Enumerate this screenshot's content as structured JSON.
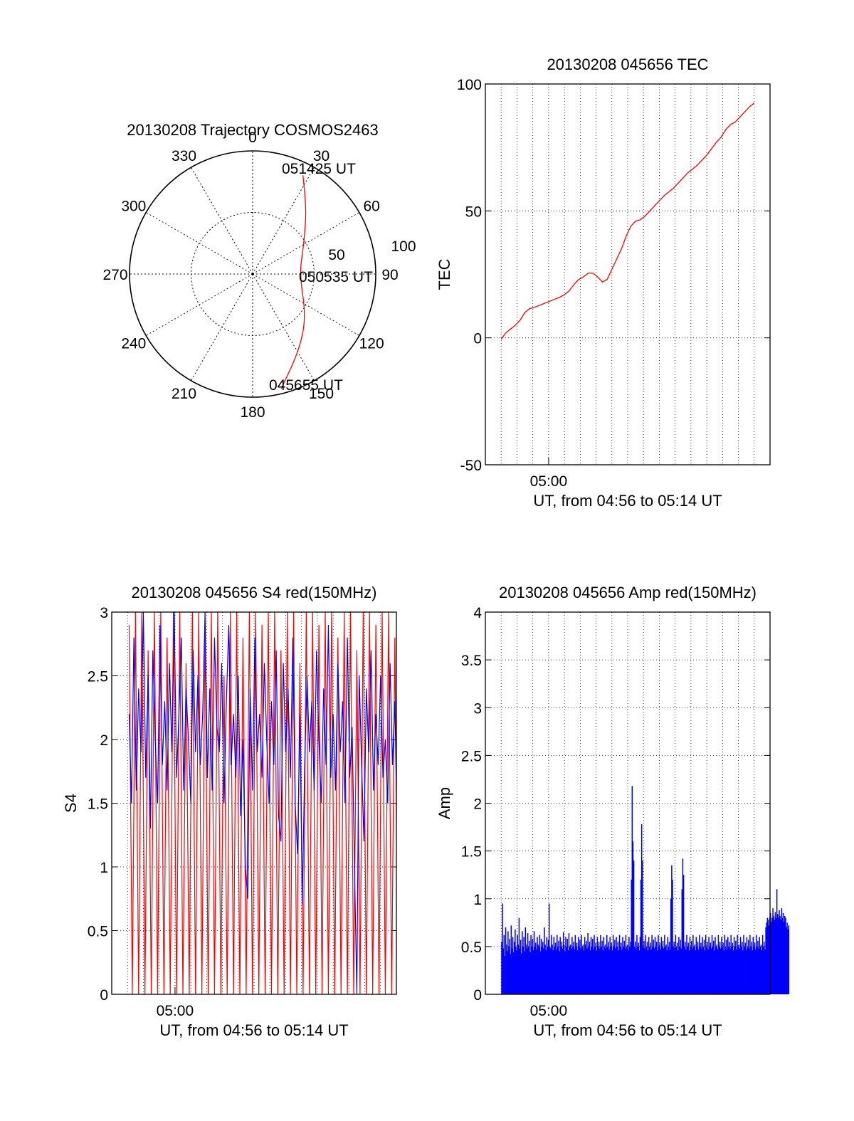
{
  "chart_data": [
    {
      "type": "polar",
      "title": "20130208 Trajectory COSMOS2463",
      "azimuth_labels": [
        "0",
        "30",
        "60",
        "90",
        "120",
        "150",
        "180",
        "210",
        "240",
        "270",
        "300",
        "330"
      ],
      "radial_labels": [
        "50",
        "100"
      ],
      "radial_range": [
        0,
        100
      ],
      "start_label": "045655 UT",
      "mid_label": "050535 UT",
      "end_label": "051425 UT",
      "trajectory": [
        {
          "az": 166.0,
          "r": 96.0
        },
        {
          "az": 148.0,
          "r": 72.0
        },
        {
          "az": 128.0,
          "r": 55.0
        },
        {
          "az": 90.0,
          "r": 38.0
        },
        {
          "az": 60.0,
          "r": 48.0
        },
        {
          "az": 40.0,
          "r": 68.0
        },
        {
          "az": 27.0,
          "r": 90.0
        }
      ],
      "series_color": "#ff0000"
    },
    {
      "type": "line",
      "title": "20130208 045656 TEC",
      "xlabel": "UT, from 04:56 to 05:14 UT",
      "ylabel": "TEC",
      "xlim": [
        0,
        18
      ],
      "ylim": [
        -50,
        100
      ],
      "yticks": [
        "-50",
        "0",
        "50",
        "100"
      ],
      "xtick_label": "05:00",
      "xtick_value": 4,
      "grid": true,
      "series_color": "#ff0000",
      "points": [
        [
          1.0,
          -0.5
        ],
        [
          1.3,
          2
        ],
        [
          1.6,
          3.5
        ],
        [
          1.9,
          5
        ],
        [
          2.2,
          7
        ],
        [
          2.5,
          10
        ],
        [
          2.8,
          11.5
        ],
        [
          3.1,
          12
        ],
        [
          3.5,
          13
        ],
        [
          3.9,
          14
        ],
        [
          4.3,
          15
        ],
        [
          4.7,
          16
        ],
        [
          5.0,
          17
        ],
        [
          5.3,
          18.5
        ],
        [
          5.6,
          21
        ],
        [
          5.9,
          23
        ],
        [
          6.2,
          24
        ],
        [
          6.5,
          25.5
        ],
        [
          6.8,
          25.5
        ],
        [
          7.1,
          24
        ],
        [
          7.4,
          22
        ],
        [
          7.7,
          23
        ],
        [
          8.0,
          27
        ],
        [
          8.3,
          31
        ],
        [
          8.6,
          35
        ],
        [
          8.9,
          40
        ],
        [
          9.2,
          44
        ],
        [
          9.5,
          46
        ],
        [
          9.8,
          46.5
        ],
        [
          10.1,
          48
        ],
        [
          10.4,
          50
        ],
        [
          10.7,
          52
        ],
        [
          11.0,
          54
        ],
        [
          11.3,
          56
        ],
        [
          11.6,
          57.5
        ],
        [
          11.9,
          59
        ],
        [
          12.2,
          61
        ],
        [
          12.5,
          63
        ],
        [
          12.8,
          65
        ],
        [
          13.1,
          66.5
        ],
        [
          13.4,
          68
        ],
        [
          13.7,
          70
        ],
        [
          14.0,
          72
        ],
        [
          14.3,
          74.5
        ],
        [
          14.6,
          77
        ],
        [
          14.9,
          79
        ],
        [
          15.2,
          82
        ],
        [
          15.5,
          84
        ],
        [
          15.8,
          85
        ],
        [
          16.1,
          87
        ],
        [
          16.4,
          89
        ],
        [
          16.7,
          91
        ],
        [
          17.0,
          92.5
        ]
      ]
    },
    {
      "type": "line",
      "title": "20130208 045656 S4 red(150MHz)",
      "xlabel": "UT, from 04:56 to 05:14 UT",
      "ylabel": "S4",
      "xlim": [
        0,
        18
      ],
      "ylim": [
        0,
        3
      ],
      "yticks": [
        "0",
        "0.5",
        "1",
        "1.5",
        "2",
        "2.5",
        "3"
      ],
      "xtick_label": "05:00",
      "xtick_value": 4,
      "grid": true,
      "series": [
        {
          "color": "#ff0000",
          "x": [
            0.0,
            0.2,
            0.4,
            0.6,
            0.8,
            1.0,
            1.2,
            1.4,
            1.6,
            1.8,
            2.0,
            2.2,
            2.4,
            2.6,
            2.8,
            3.0,
            3.2,
            3.4,
            3.6,
            3.8,
            4.0,
            4.2,
            4.4,
            4.6,
            4.8,
            5.0,
            5.2,
            5.4,
            5.6,
            5.8,
            6.0,
            6.2,
            6.4,
            6.6,
            6.8,
            7.0,
            7.2,
            7.4,
            7.6,
            7.8,
            8.0,
            8.2,
            8.4,
            8.6,
            8.8,
            9.0,
            9.2,
            9.4,
            9.6,
            9.8,
            10.0,
            10.2,
            10.4,
            10.6,
            10.8,
            11.0,
            11.2,
            11.4,
            11.6,
            11.8,
            12.0,
            12.2,
            12.4,
            12.6,
            12.8,
            13.0,
            13.2,
            13.4,
            13.6,
            13.8,
            14.0,
            14.2,
            14.4,
            14.6,
            14.8,
            15.0,
            15.2,
            15.4,
            15.6,
            15.8,
            16.0,
            16.2,
            16.4,
            16.6,
            16.8,
            17.0,
            17.2,
            17.4,
            17.6,
            17.8
          ],
          "y": [
            2.9,
            0.0,
            3.0,
            0.0,
            3.0,
            0.0,
            2.7,
            0.0,
            3.0,
            0.0,
            3.0,
            0.0,
            2.8,
            0.0,
            3.0,
            0.0,
            3.0,
            0.0,
            2.6,
            0.0,
            3.0,
            0.0,
            3.0,
            0.0,
            2.9,
            0.0,
            3.0,
            0.0,
            3.0,
            0.0,
            2.5,
            0.0,
            3.0,
            0.0,
            3.0,
            0.0,
            2.8,
            0.0,
            3.0,
            0.0,
            3.0,
            0.0,
            2.9,
            0.0,
            3.0,
            0.0,
            3.0,
            0.0,
            2.7,
            0.0,
            3.0,
            0.0,
            3.0,
            0.0,
            2.6,
            0.0,
            3.0,
            0.0,
            3.0,
            0.0,
            2.9,
            0.0,
            3.0,
            0.0,
            3.0,
            0.0,
            2.8,
            0.0,
            3.0,
            0.0,
            3.0,
            0.0,
            2.7,
            0.0,
            3.0,
            0.0,
            3.0,
            0.0,
            2.9,
            0.0,
            3.0,
            0.0,
            3.0,
            0.0,
            2.8,
            0.0,
            3.0,
            0.0,
            3.0,
            0.0
          ]
        },
        {
          "color": "#0000ff",
          "x": [
            0.0,
            0.15,
            0.3,
            0.45,
            0.6,
            0.75,
            0.9,
            1.05,
            1.2,
            1.35,
            1.5,
            1.65,
            1.8,
            1.95,
            2.1,
            2.25,
            2.4,
            2.55,
            2.7,
            2.85,
            3.0,
            3.15,
            3.3,
            3.45,
            3.6,
            3.75,
            3.9,
            4.05,
            4.2,
            4.35,
            4.5,
            4.65,
            4.8,
            4.95,
            5.1,
            5.25,
            5.4,
            5.55,
            5.7,
            5.85,
            6.0,
            6.15,
            6.3,
            6.45,
            6.6,
            6.75,
            6.9,
            7.05,
            7.2,
            7.35,
            7.5,
            7.65,
            7.8,
            7.95,
            8.1,
            8.25,
            8.4,
            8.55,
            8.7,
            8.85,
            9.0,
            9.15,
            9.3,
            9.45,
            9.6,
            9.75,
            9.9,
            10.05,
            10.2,
            10.35,
            10.5,
            10.65,
            10.8,
            10.95,
            11.1,
            11.25,
            11.4,
            11.55,
            11.7,
            11.85,
            12.0,
            12.15,
            12.3,
            12.45,
            12.6,
            12.75,
            12.9,
            13.05,
            13.2,
            13.35,
            13.5,
            13.65,
            13.8,
            13.95,
            14.1,
            14.25,
            14.4,
            14.55,
            14.7,
            14.85,
            15.0,
            15.15,
            15.3,
            15.45,
            15.6,
            15.75,
            15.9,
            16.05,
            16.2,
            16.35,
            16.5,
            16.65,
            16.8,
            16.95,
            17.1,
            17.25,
            17.4,
            17.55,
            17.7,
            17.85
          ],
          "y": [
            2.2,
            1.5,
            2.8,
            1.6,
            2.4,
            1.9,
            3.0,
            1.7,
            2.5,
            1.3,
            2.7,
            2.0,
            1.5,
            2.9,
            1.8,
            2.3,
            1.6,
            2.6,
            1.9,
            3.0,
            1.7,
            2.2,
            2.8,
            1.6,
            2.4,
            2.0,
            1.5,
            2.7,
            1.9,
            2.5,
            1.8,
            2.2,
            3.0,
            1.7,
            2.4,
            1.6,
            2.8,
            2.1,
            1.9,
            2.6,
            1.5,
            2.3,
            2.9,
            1.8,
            2.2,
            1.7,
            2.5,
            1.4,
            2.0,
            1.0,
            0.75,
            2.4,
            1.6,
            2.8,
            1.9,
            2.2,
            1.7,
            2.6,
            2.0,
            1.5,
            2.3,
            1.8,
            2.7,
            1.4,
            1.2,
            2.6,
            1.9,
            2.4,
            1.7,
            2.8,
            1.5,
            1.1,
            2.2,
            0.7,
            1.8,
            2.5,
            1.9,
            2.3,
            1.6,
            2.7,
            2.0,
            1.5,
            2.4,
            1.8,
            2.9,
            1.7,
            2.2,
            1.6,
            2.6,
            1.9,
            2.3,
            1.5,
            2.8,
            1.7,
            2.1,
            1.0,
            0.0,
            2.5,
            1.8,
            1.2,
            2.4,
            1.9,
            2.7,
            1.6,
            2.2,
            1.8,
            2.5,
            1.7,
            2.0,
            1.5,
            2.6,
            1.8,
            2.3,
            1.3,
            1.6,
            2.4,
            1.9,
            1.4,
            2.7,
            2.0
          ]
        }
      ]
    },
    {
      "type": "bar",
      "title": "20130208 045656 Amp red(150MHz)",
      "xlabel": "UT, from 04:56 to 05:14 UT",
      "ylabel": "Amp",
      "xlim": [
        0,
        18
      ],
      "ylim": [
        0,
        4
      ],
      "yticks": [
        "0",
        "0.5",
        "1",
        "1.5",
        "2",
        "2.5",
        "3",
        "3.5",
        "4"
      ],
      "xtick_label": "05:00",
      "xtick_value": 4,
      "grid": true,
      "series_color": "#0000ff",
      "values_x_start": 1.0,
      "values_x_step": 0.05,
      "values": [
        0.55,
        0.95,
        0.48,
        0.62,
        0.4,
        0.7,
        0.52,
        0.45,
        0.66,
        0.5,
        0.58,
        0.42,
        0.72,
        0.48,
        0.6,
        0.44,
        0.55,
        0.68,
        0.5,
        0.46,
        0.62,
        0.52,
        0.8,
        0.48,
        0.57,
        0.43,
        0.66,
        0.5,
        0.6,
        0.45,
        0.7,
        0.52,
        0.48,
        0.64,
        0.5,
        0.56,
        0.44,
        0.62,
        0.5,
        0.58,
        0.46,
        0.66,
        0.5,
        0.54,
        0.47,
        0.6,
        0.52,
        0.5,
        0.62,
        0.45,
        0.58,
        0.5,
        0.55,
        0.48,
        0.7,
        0.52,
        0.46,
        0.6,
        0.5,
        0.57,
        0.95,
        0.5,
        0.48,
        0.62,
        0.52,
        0.46,
        0.6,
        0.5,
        0.54,
        0.47,
        0.62,
        0.5,
        0.56,
        0.45,
        0.6,
        0.5,
        0.55,
        0.48,
        0.65,
        0.52,
        0.45,
        0.6,
        0.5,
        0.58,
        0.46,
        0.64,
        0.5,
        0.52,
        0.48,
        0.6,
        0.5,
        0.55,
        0.47,
        0.62,
        0.5,
        0.54,
        0.46,
        0.6,
        0.5,
        0.57,
        0.48,
        0.62,
        0.5,
        0.52,
        0.46,
        0.6,
        0.52,
        0.56,
        0.48,
        0.64,
        0.5,
        0.55,
        0.46,
        0.6,
        0.5,
        0.58,
        0.47,
        0.62,
        0.5,
        0.54,
        0.46,
        0.6,
        0.5,
        0.55,
        0.48,
        0.62,
        0.5,
        0.56,
        0.46,
        0.6,
        0.5,
        0.52,
        0.48,
        0.62,
        0.5,
        0.55,
        0.47,
        0.6,
        0.5,
        0.54,
        0.46,
        0.62,
        0.5,
        0.57,
        0.48,
        0.6,
        0.5,
        0.55,
        0.46,
        0.62,
        0.5,
        0.54,
        0.47,
        0.6,
        0.5,
        0.56,
        0.48,
        0.62,
        0.5,
        0.52,
        0.46,
        0.6,
        0.5,
        0.55,
        1.2,
        2.18,
        1.6,
        1.4,
        0.5,
        0.55,
        0.48,
        0.62,
        0.5,
        0.54,
        0.46,
        0.6,
        1.2,
        1.78,
        1.4,
        0.5,
        0.56,
        0.48,
        0.62,
        0.5,
        0.55,
        0.46,
        0.6,
        0.5,
        0.54,
        0.47,
        0.62,
        0.5,
        0.57,
        0.48,
        0.6,
        0.5,
        0.55,
        0.46,
        0.62,
        0.5,
        0.54,
        0.47,
        0.6,
        0.5,
        0.56,
        0.48,
        0.62,
        0.5,
        0.52,
        0.46,
        0.6,
        0.5,
        0.55,
        0.47,
        1.0,
        1.35,
        1.2,
        0.5,
        0.55,
        0.48,
        0.62,
        0.5,
        0.54,
        0.46,
        0.6,
        0.5,
        0.57,
        0.48,
        1.1,
        1.42,
        1.25,
        0.5,
        0.55,
        0.47,
        0.62,
        0.5,
        0.54,
        0.46,
        0.6,
        0.5,
        0.56,
        0.48,
        0.62,
        0.5,
        0.52,
        0.46,
        0.6,
        0.5,
        0.55,
        0.47,
        0.62,
        0.5,
        0.54,
        0.48,
        0.6,
        0.5,
        0.57,
        0.46,
        0.62,
        0.5,
        0.55,
        0.47,
        0.6,
        0.5,
        0.54,
        0.48,
        0.62,
        0.5,
        0.56,
        0.46,
        0.6,
        0.5,
        0.52,
        0.47,
        0.62,
        0.5,
        0.55,
        0.48,
        0.6,
        0.5,
        0.54,
        0.46,
        0.62,
        0.5,
        0.57,
        0.47,
        0.6,
        0.5,
        0.55,
        0.48,
        0.62,
        0.5,
        0.54,
        0.46,
        0.6,
        0.5,
        0.56,
        0.47,
        0.62,
        0.5,
        0.52,
        0.48,
        0.6,
        0.5,
        0.55,
        0.46,
        0.62,
        0.5,
        0.54,
        0.47,
        0.6,
        0.5,
        0.57,
        0.48,
        0.62,
        0.5,
        0.55,
        0.46,
        0.6,
        0.5,
        0.54,
        0.47,
        0.62,
        0.5,
        0.56,
        0.48,
        0.6,
        0.5,
        0.52,
        0.46,
        0.62,
        0.5,
        0.55,
        0.47,
        0.7,
        0.75,
        0.8,
        0.78,
        0.72,
        0.8,
        0.85,
        0.76,
        0.8,
        0.9,
        0.82,
        0.78,
        0.86,
        0.8,
        1.1,
        0.84,
        0.8,
        0.88,
        0.82,
        0.78,
        0.9,
        0.8,
        0.85,
        0.76,
        0.82,
        0.8,
        0.7,
        0.75,
        0.68,
        0.72
      ]
    }
  ]
}
